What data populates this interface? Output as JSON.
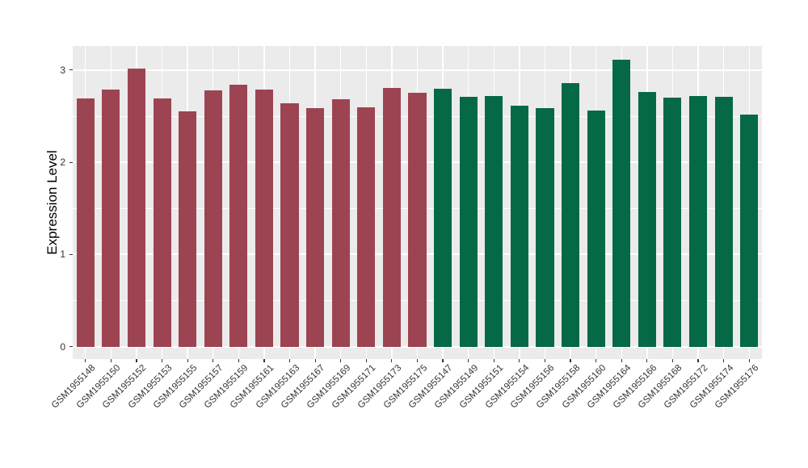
{
  "figure": {
    "background": "#FFFFFF"
  },
  "chart_data": {
    "type": "bar",
    "title": "",
    "xlabel": "",
    "ylabel": "Expression Level",
    "ylim": [
      -0.14,
      3.26
    ],
    "yticks": [
      0,
      1,
      2,
      3
    ],
    "yminor": [
      0.5,
      1.5,
      2.5
    ],
    "grid": true,
    "legend": false,
    "panel_bg": "#EBEBEB",
    "grid_color": "#FFFFFF",
    "axis_text_color": "#333333",
    "bar_width_frac": 0.7,
    "series": [
      {
        "name": "group-1-maroon",
        "color": "#9D4452",
        "categories": [
          "GSM1955148",
          "GSM1955150",
          "GSM1955152",
          "GSM1955153",
          "GSM1955155",
          "GSM1955157",
          "GSM1955159",
          "GSM1955161",
          "GSM1955163",
          "GSM1955167",
          "GSM1955169",
          "GSM1955171",
          "GSM1955173",
          "GSM1955175"
        ],
        "values": [
          2.69,
          2.79,
          3.02,
          2.69,
          2.55,
          2.78,
          2.84,
          2.79,
          2.64,
          2.59,
          2.68,
          2.6,
          2.81,
          2.75
        ]
      },
      {
        "name": "group-2-green",
        "color": "#056946",
        "categories": [
          "GSM1955147",
          "GSM1955149",
          "GSM1955151",
          "GSM1955154",
          "GSM1955156",
          "GSM1955158",
          "GSM1955160",
          "GSM1955164",
          "GSM1955166",
          "GSM1955168",
          "GSM1955172",
          "GSM1955174",
          "GSM1955176"
        ],
        "values": [
          2.8,
          2.71,
          2.72,
          2.61,
          2.59,
          2.86,
          2.56,
          3.11,
          2.76,
          2.7,
          2.72,
          2.71,
          2.52
        ]
      }
    ]
  }
}
